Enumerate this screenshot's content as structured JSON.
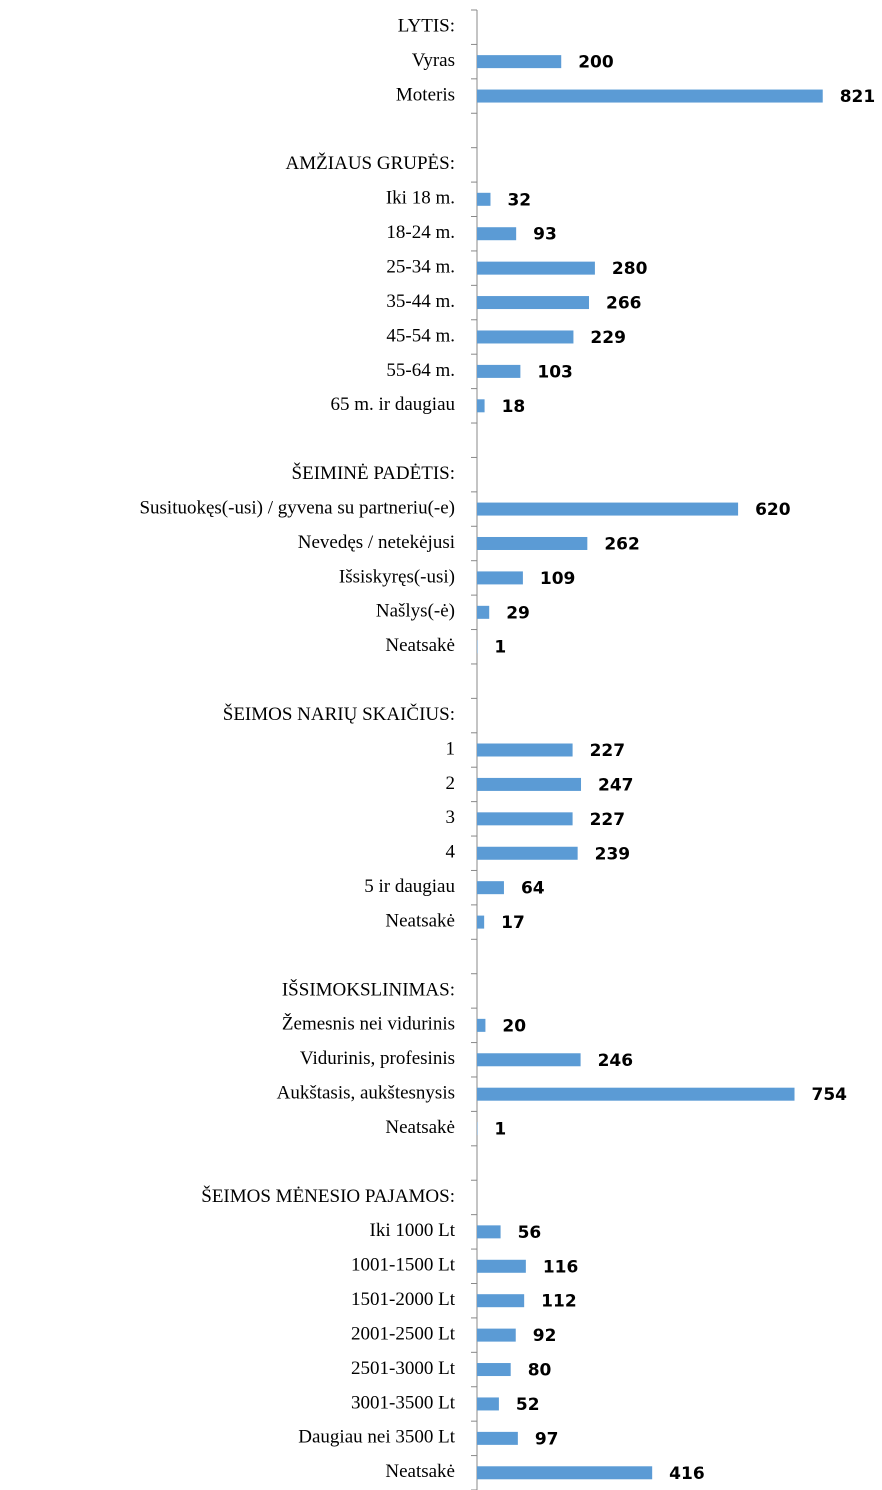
{
  "chart_data": {
    "type": "bar",
    "orientation": "horizontal",
    "categories": [
      "LYTIS:",
      "Vyras",
      "Moteris",
      null,
      "AMŽIAUS GRUPĖS:",
      "Iki 18 m.",
      "18-24 m.",
      "25-34 m.",
      "35-44 m.",
      "45-54 m.",
      "55-64 m.",
      "65 m. ir daugiau",
      null,
      "ŠEIMINĖ PADĖTIS:",
      "Susituokęs(-usi) / gyvena su partneriu(-e)",
      "Nevedęs / netekėjusi",
      "Išsiskyręs(-usi)",
      "Našlys(-ė)",
      "Neatsakė",
      null,
      "ŠEIMOS NARIŲ SKAIČIUS:",
      "1",
      "2",
      "3",
      "4",
      "5 ir daugiau",
      "Neatsakė",
      null,
      "IŠSIMOKSLINIMAS:",
      "Žemesnis nei vidurinis",
      "Vidurinis, profesinis",
      "Aukštasis, aukštesnysis",
      "Neatsakė",
      null,
      "ŠEIMOS MĖNESIO PAJAMOS:",
      "Iki 1000 Lt",
      "1001-1500 Lt",
      "1501-2000 Lt",
      "2001-2500 Lt",
      "2501-3000 Lt",
      "3001-3500 Lt",
      "Daugiau nei 3500 Lt",
      "Neatsakė"
    ],
    "values": [
      null,
      200,
      821,
      null,
      null,
      32,
      93,
      280,
      266,
      229,
      103,
      18,
      null,
      null,
      620,
      262,
      109,
      29,
      1,
      null,
      null,
      227,
      247,
      227,
      239,
      64,
      17,
      null,
      null,
      20,
      246,
      754,
      1,
      null,
      null,
      56,
      116,
      112,
      92,
      80,
      52,
      97,
      416
    ],
    "color": "#5b9bd5",
    "xlim": [
      0,
      900
    ]
  }
}
